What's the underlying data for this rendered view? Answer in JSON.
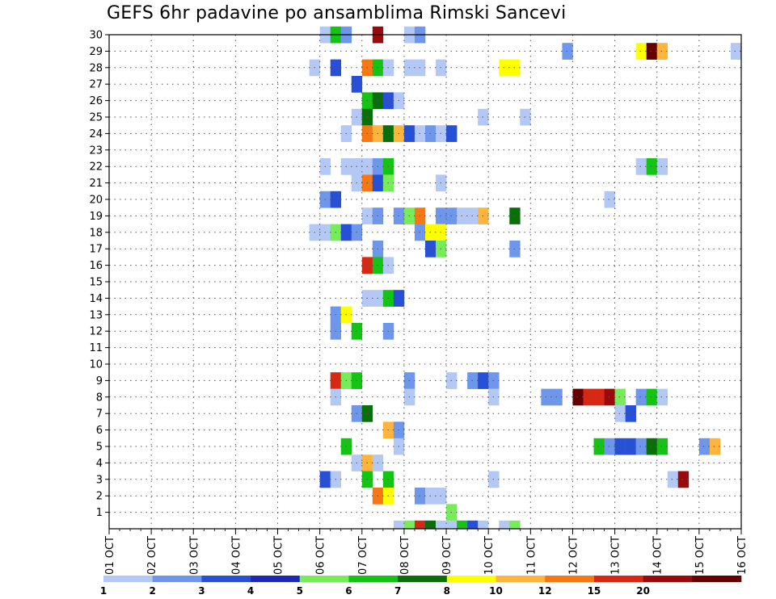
{
  "title": "GEFS 6hr padavine po ansamblima Rimski Sancevi",
  "chart_data": {
    "type": "heatmap",
    "title": "GEFS 6hr padavine po ansamblima Rimski Sancevi",
    "xlabel": "",
    "ylabel": "",
    "x_tick_labels": [
      "01 OCT",
      "02 OCT",
      "03 OCT",
      "04 OCT",
      "05 OCT",
      "06 OCT",
      "07 OCT",
      "08 OCT",
      "09 OCT",
      "10 OCT",
      "11 OCT",
      "12 OCT",
      "13 OCT",
      "14 OCT",
      "15 OCT",
      "16 OCT"
    ],
    "x_unit": "6-hour steps from 01 OCT 00Z",
    "xlim": [
      0,
      60
    ],
    "y_tick_labels": [
      "1",
      "2",
      "3",
      "4",
      "5",
      "6",
      "7",
      "8",
      "9",
      "10",
      "11",
      "12",
      "13",
      "14",
      "15",
      "16",
      "17",
      "18",
      "19",
      "20",
      "21",
      "22",
      "23",
      "24",
      "25",
      "26",
      "27",
      "28",
      "29",
      "30"
    ],
    "ylim": [
      0,
      30
    ],
    "grid": true,
    "colorbar": {
      "labels": [
        "1",
        "2",
        "3",
        "4",
        "5",
        "6",
        "7",
        "8",
        "10",
        "12",
        "15",
        "20"
      ],
      "colors": [
        "#b4c8f5",
        "#6e96eb",
        "#2850d7",
        "#1e28b4",
        "#78eb5a",
        "#14c314",
        "#0a6e0a",
        "#ffff00",
        "#ffb43c",
        "#f57814",
        "#d72814",
        "#9b0a0a",
        "#640000"
      ]
    },
    "cells": [
      [
        30,
        20,
        "#b4c8f5"
      ],
      [
        30,
        21,
        "#14c314"
      ],
      [
        30,
        22,
        "#6e96eb"
      ],
      [
        30,
        25,
        "#9b0a0a"
      ],
      [
        30,
        28,
        "#b4c8f5"
      ],
      [
        30,
        29,
        "#6e96eb"
      ],
      [
        29,
        43,
        "#6e96eb"
      ],
      [
        29,
        50,
        "#ffff00"
      ],
      [
        29,
        51,
        "#640000"
      ],
      [
        29,
        52,
        "#ffb43c"
      ],
      [
        29,
        59,
        "#b4c8f5"
      ],
      [
        28,
        19,
        "#b4c8f5"
      ],
      [
        28,
        21,
        "#2850d7"
      ],
      [
        28,
        24,
        "#f57814"
      ],
      [
        28,
        25,
        "#14c314"
      ],
      [
        28,
        26,
        "#b4c8f5"
      ],
      [
        28,
        28,
        "#b4c8f5"
      ],
      [
        28,
        29,
        "#b4c8f5"
      ],
      [
        28,
        31,
        "#b4c8f5"
      ],
      [
        28,
        37,
        "#ffff00"
      ],
      [
        28,
        38,
        "#ffff00"
      ],
      [
        27,
        23,
        "#2850d7"
      ],
      [
        26,
        24,
        "#14c314"
      ],
      [
        26,
        25,
        "#0a6e0a"
      ],
      [
        26,
        26,
        "#2850d7"
      ],
      [
        26,
        27,
        "#b4c8f5"
      ],
      [
        25,
        23,
        "#b4c8f5"
      ],
      [
        25,
        24,
        "#0a6e0a"
      ],
      [
        25,
        35,
        "#b4c8f5"
      ],
      [
        25,
        39,
        "#b4c8f5"
      ],
      [
        24,
        22,
        "#b4c8f5"
      ],
      [
        24,
        24,
        "#f57814"
      ],
      [
        24,
        25,
        "#ffb43c"
      ],
      [
        24,
        26,
        "#0a6e0a"
      ],
      [
        24,
        27,
        "#ffb43c"
      ],
      [
        24,
        28,
        "#2850d7"
      ],
      [
        24,
        29,
        "#b4c8f5"
      ],
      [
        24,
        30,
        "#6e96eb"
      ],
      [
        24,
        31,
        "#b4c8f5"
      ],
      [
        24,
        32,
        "#2850d7"
      ],
      [
        22,
        20,
        "#b4c8f5"
      ],
      [
        22,
        22,
        "#b4c8f5"
      ],
      [
        22,
        23,
        "#b4c8f5"
      ],
      [
        22,
        24,
        "#b4c8f5"
      ],
      [
        22,
        25,
        "#6e96eb"
      ],
      [
        22,
        26,
        "#14c314"
      ],
      [
        22,
        50,
        "#b4c8f5"
      ],
      [
        22,
        51,
        "#14c314"
      ],
      [
        22,
        52,
        "#b4c8f5"
      ],
      [
        21,
        23,
        "#b4c8f5"
      ],
      [
        21,
        24,
        "#f57814"
      ],
      [
        21,
        25,
        "#2850d7"
      ],
      [
        21,
        26,
        "#78eb5a"
      ],
      [
        21,
        31,
        "#b4c8f5"
      ],
      [
        20,
        20,
        "#6e96eb"
      ],
      [
        20,
        21,
        "#2850d7"
      ],
      [
        20,
        47,
        "#b4c8f5"
      ],
      [
        19,
        24,
        "#b4c8f5"
      ],
      [
        19,
        25,
        "#6e96eb"
      ],
      [
        19,
        27,
        "#6e96eb"
      ],
      [
        19,
        28,
        "#78eb5a"
      ],
      [
        19,
        29,
        "#f57814"
      ],
      [
        19,
        31,
        "#6e96eb"
      ],
      [
        19,
        32,
        "#6e96eb"
      ],
      [
        19,
        33,
        "#b4c8f5"
      ],
      [
        19,
        34,
        "#b4c8f5"
      ],
      [
        19,
        35,
        "#ffb43c"
      ],
      [
        19,
        38,
        "#0a6e0a"
      ],
      [
        18,
        19,
        "#b4c8f5"
      ],
      [
        18,
        20,
        "#b4c8f5"
      ],
      [
        18,
        21,
        "#78eb5a"
      ],
      [
        18,
        22,
        "#2850d7"
      ],
      [
        18,
        23,
        "#6e96eb"
      ],
      [
        18,
        29,
        "#6e96eb"
      ],
      [
        18,
        30,
        "#ffff00"
      ],
      [
        18,
        31,
        "#ffff00"
      ],
      [
        17,
        25,
        "#6e96eb"
      ],
      [
        17,
        30,
        "#2850d7"
      ],
      [
        17,
        31,
        "#78eb5a"
      ],
      [
        17,
        38,
        "#6e96eb"
      ],
      [
        16,
        24,
        "#d72814"
      ],
      [
        16,
        25,
        "#14c314"
      ],
      [
        16,
        26,
        "#b4c8f5"
      ],
      [
        14,
        24,
        "#b4c8f5"
      ],
      [
        14,
        25,
        "#b4c8f5"
      ],
      [
        14,
        26,
        "#14c314"
      ],
      [
        14,
        27,
        "#2850d7"
      ],
      [
        13,
        21,
        "#6e96eb"
      ],
      [
        13,
        22,
        "#ffff00"
      ],
      [
        12,
        21,
        "#6e96eb"
      ],
      [
        12,
        23,
        "#14c314"
      ],
      [
        12,
        26,
        "#6e96eb"
      ],
      [
        9,
        21,
        "#d72814"
      ],
      [
        9,
        22,
        "#78eb5a"
      ],
      [
        9,
        23,
        "#14c314"
      ],
      [
        9,
        28,
        "#6e96eb"
      ],
      [
        9,
        32,
        "#b4c8f5"
      ],
      [
        9,
        34,
        "#6e96eb"
      ],
      [
        9,
        35,
        "#2850d7"
      ],
      [
        9,
        36,
        "#6e96eb"
      ],
      [
        8,
        21,
        "#b4c8f5"
      ],
      [
        8,
        28,
        "#b4c8f5"
      ],
      [
        8,
        36,
        "#b4c8f5"
      ],
      [
        8,
        41,
        "#6e96eb"
      ],
      [
        8,
        42,
        "#6e96eb"
      ],
      [
        8,
        44,
        "#640000"
      ],
      [
        8,
        45,
        "#d72814"
      ],
      [
        8,
        46,
        "#d72814"
      ],
      [
        8,
        47,
        "#9b0a0a"
      ],
      [
        8,
        48,
        "#78eb5a"
      ],
      [
        8,
        50,
        "#6e96eb"
      ],
      [
        8,
        51,
        "#14c314"
      ],
      [
        8,
        52,
        "#b4c8f5"
      ],
      [
        7,
        23,
        "#6e96eb"
      ],
      [
        7,
        24,
        "#0a6e0a"
      ],
      [
        7,
        48,
        "#b4c8f5"
      ],
      [
        7,
        49,
        "#2850d7"
      ],
      [
        6,
        26,
        "#ffb43c"
      ],
      [
        6,
        27,
        "#6e96eb"
      ],
      [
        5,
        22,
        "#14c314"
      ],
      [
        5,
        27,
        "#b4c8f5"
      ],
      [
        5,
        46,
        "#14c314"
      ],
      [
        5,
        47,
        "#6e96eb"
      ],
      [
        5,
        48,
        "#2850d7"
      ],
      [
        5,
        49,
        "#2850d7"
      ],
      [
        5,
        50,
        "#6e96eb"
      ],
      [
        5,
        51,
        "#0a6e0a"
      ],
      [
        5,
        52,
        "#14c314"
      ],
      [
        5,
        56,
        "#6e96eb"
      ],
      [
        5,
        57,
        "#ffb43c"
      ],
      [
        4,
        23,
        "#b4c8f5"
      ],
      [
        4,
        24,
        "#ffb43c"
      ],
      [
        4,
        25,
        "#b4c8f5"
      ],
      [
        3,
        20,
        "#2850d7"
      ],
      [
        3,
        21,
        "#b4c8f5"
      ],
      [
        3,
        24,
        "#14c314"
      ],
      [
        3,
        26,
        "#14c314"
      ],
      [
        3,
        36,
        "#b4c8f5"
      ],
      [
        3,
        53,
        "#b4c8f5"
      ],
      [
        3,
        54,
        "#9b0a0a"
      ],
      [
        2,
        25,
        "#f57814"
      ],
      [
        2,
        26,
        "#ffff00"
      ],
      [
        2,
        29,
        "#6e96eb"
      ],
      [
        2,
        30,
        "#b4c8f5"
      ],
      [
        2,
        31,
        "#b4c8f5"
      ],
      [
        1,
        32,
        "#78eb5a"
      ],
      [
        0,
        27,
        "#b4c8f5"
      ],
      [
        0,
        28,
        "#78eb5a"
      ],
      [
        0,
        29,
        "#d72814"
      ],
      [
        0,
        30,
        "#0a6e0a"
      ],
      [
        0,
        31,
        "#b4c8f5"
      ],
      [
        0,
        32,
        "#b4c8f5"
      ],
      [
        0,
        33,
        "#14c314"
      ],
      [
        0,
        34,
        "#2850d7"
      ],
      [
        0,
        35,
        "#b4c8f5"
      ],
      [
        0,
        37,
        "#b4c8f5"
      ],
      [
        0,
        38,
        "#78eb5a"
      ]
    ]
  }
}
